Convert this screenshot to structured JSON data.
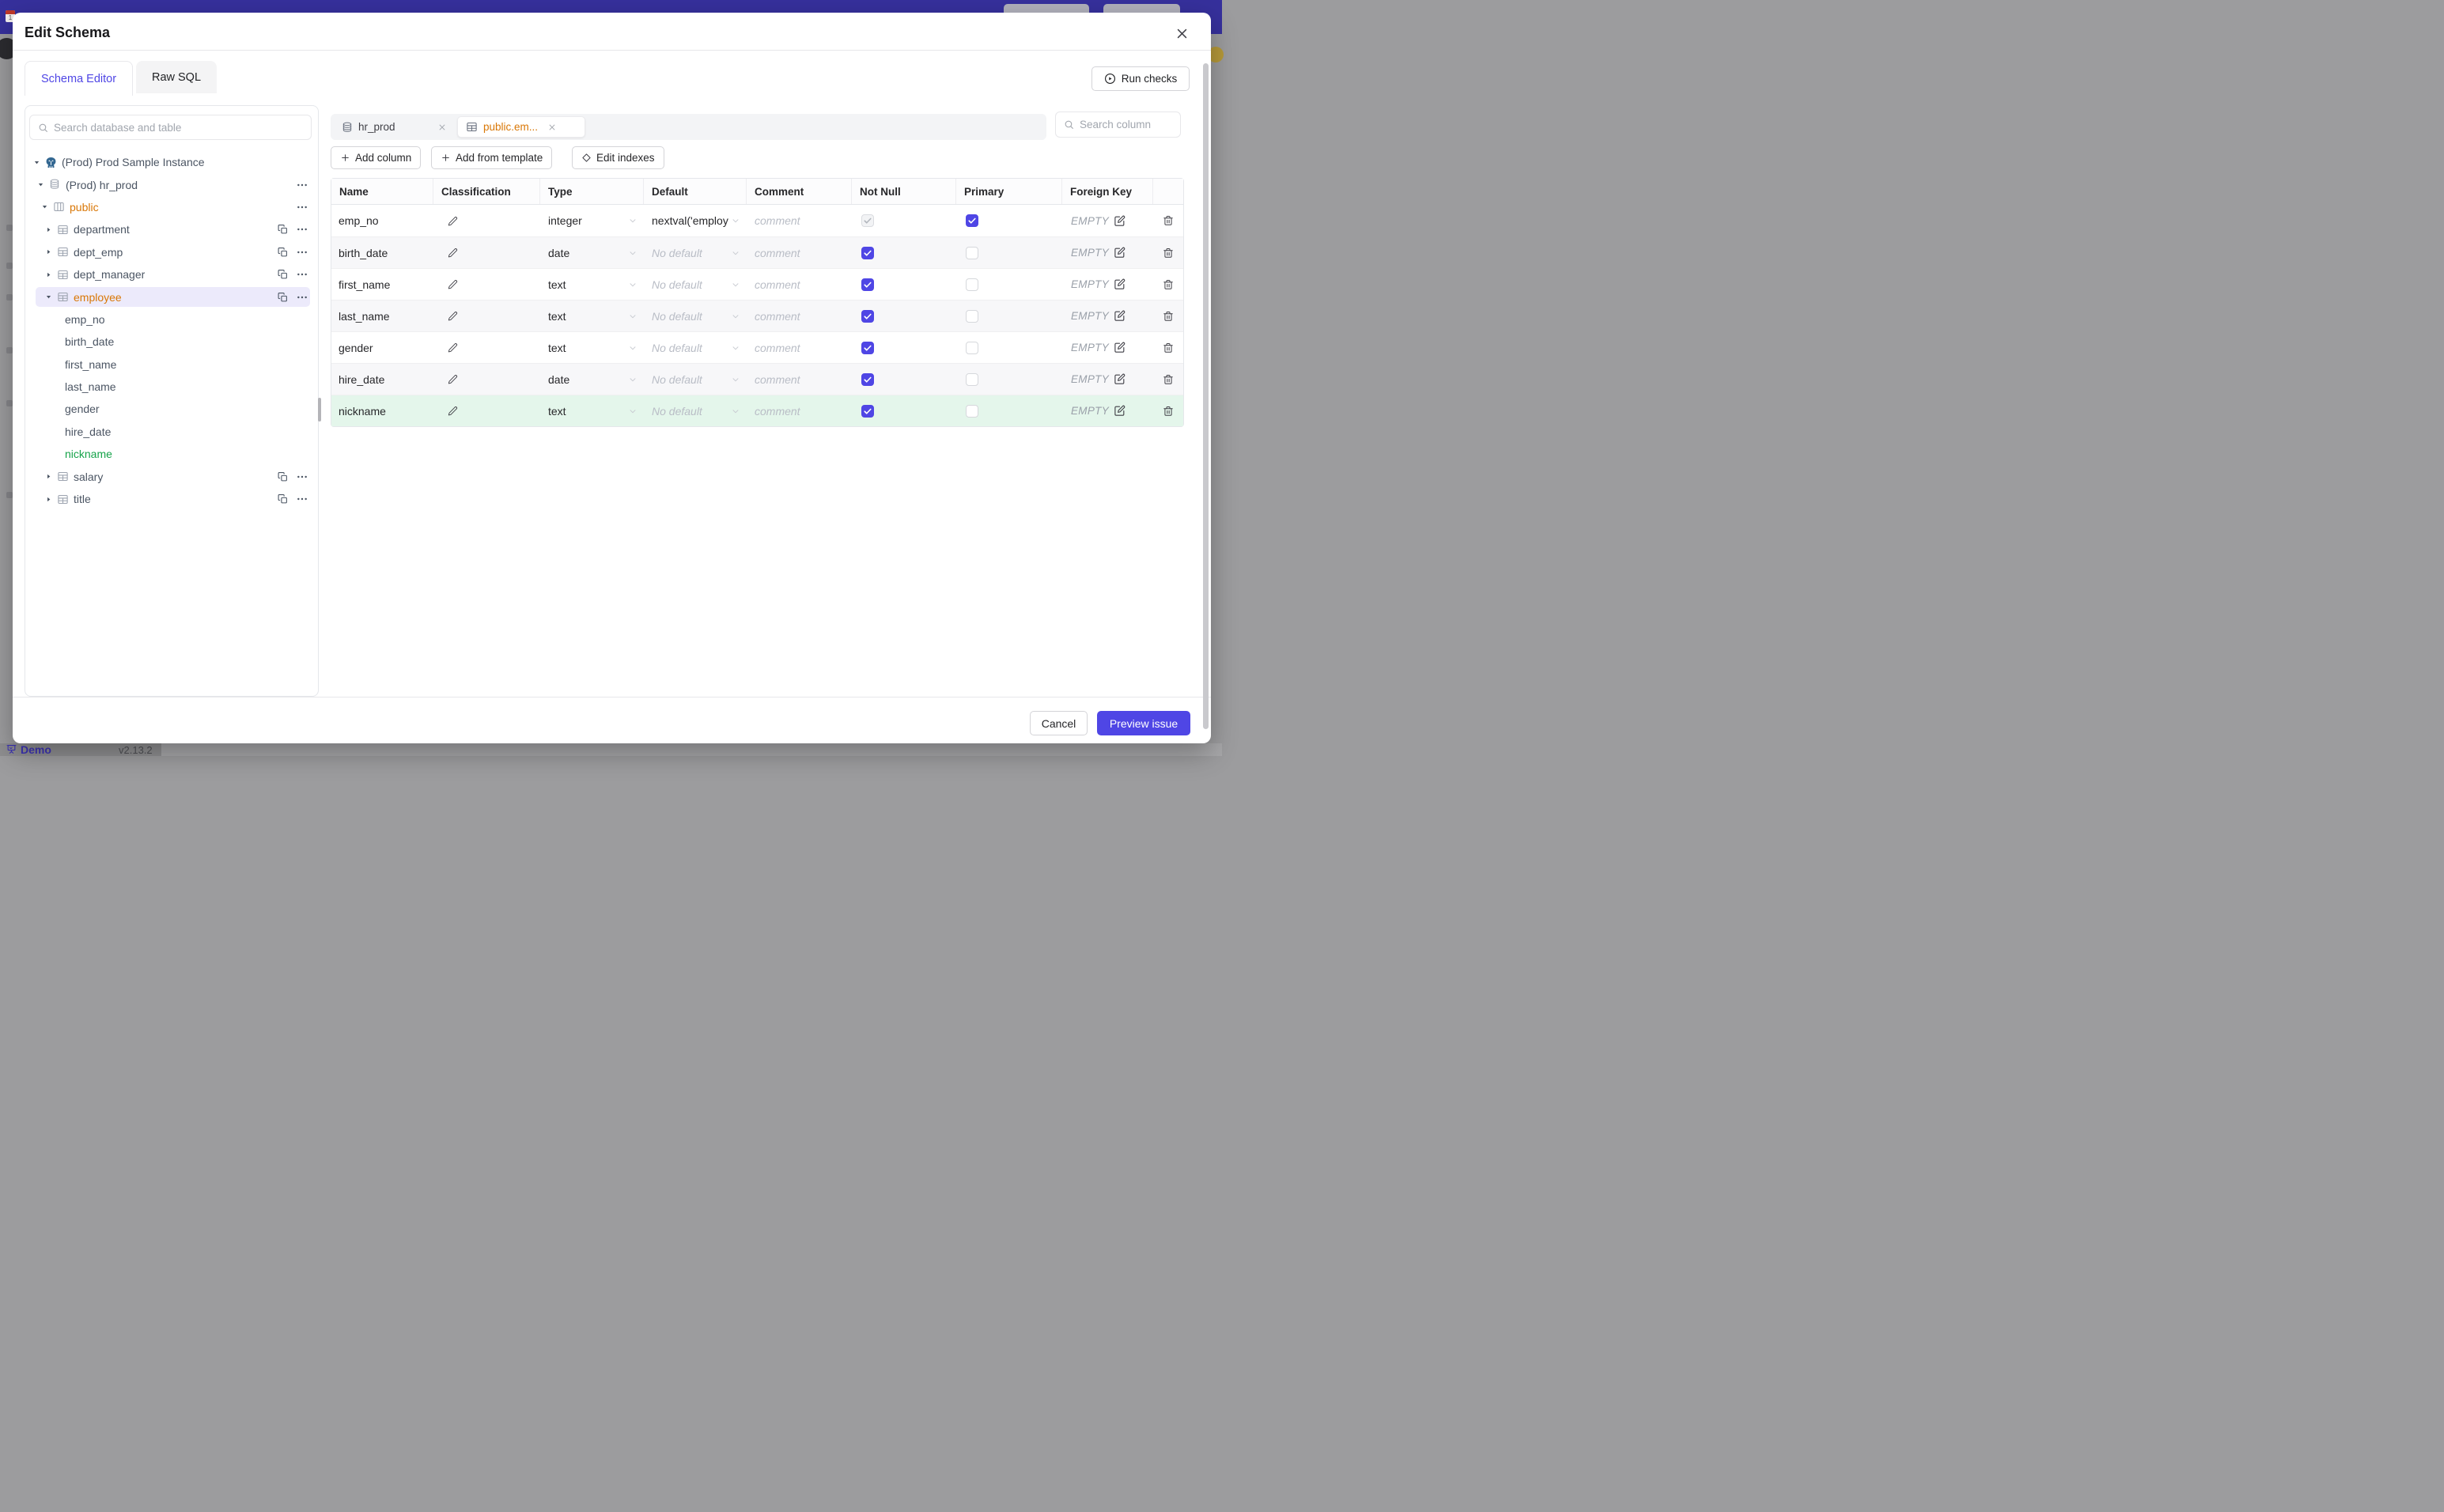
{
  "background": {
    "brand": "Demo",
    "version": "v2.13.2"
  },
  "dialog": {
    "title": "Edit Schema",
    "close_icon": "close-icon",
    "tabs": [
      {
        "label": "Schema Editor",
        "active": true
      },
      {
        "label": "Raw SQL",
        "active": false
      }
    ],
    "run_checks": {
      "label": "Run checks",
      "icon": "play-circle-icon"
    },
    "sidebar": {
      "search_placeholder": "Search database and table",
      "tree": [
        {
          "label": "(Prod) Prod Sample Instance",
          "level": 0,
          "icon": "postgres-instance-icon",
          "caret": "expanded",
          "actions": []
        },
        {
          "label": "(Prod) hr_prod",
          "level": 1,
          "icon": "database-icon",
          "caret": "expanded",
          "actions": [
            "more"
          ]
        },
        {
          "label": "public",
          "level": 2,
          "icon": "schema-icon",
          "caret": "expanded",
          "color": "amber",
          "actions": [
            "more"
          ]
        },
        {
          "label": "department",
          "level": 3,
          "icon": "table-icon",
          "caret": "collapsed",
          "actions": [
            "copy",
            "more"
          ]
        },
        {
          "label": "dept_emp",
          "level": 3,
          "icon": "table-icon",
          "caret": "collapsed",
          "actions": [
            "copy",
            "more"
          ]
        },
        {
          "label": "dept_manager",
          "level": 3,
          "icon": "table-icon",
          "caret": "collapsed",
          "actions": [
            "copy",
            "more"
          ]
        },
        {
          "label": "employee",
          "level": 3,
          "icon": "table-icon",
          "caret": "expanded",
          "color": "amber",
          "selected": true,
          "actions": [
            "copy",
            "more"
          ]
        },
        {
          "label": "emp_no",
          "level": 4,
          "kind": "column"
        },
        {
          "label": "birth_date",
          "level": 4,
          "kind": "column"
        },
        {
          "label": "first_name",
          "level": 4,
          "kind": "column"
        },
        {
          "label": "last_name",
          "level": 4,
          "kind": "column"
        },
        {
          "label": "gender",
          "level": 4,
          "kind": "column"
        },
        {
          "label": "hire_date",
          "level": 4,
          "kind": "column"
        },
        {
          "label": "nickname",
          "level": 4,
          "kind": "column",
          "color": "green"
        },
        {
          "label": "salary",
          "level": 3,
          "icon": "table-icon",
          "caret": "collapsed",
          "actions": [
            "copy",
            "more"
          ]
        },
        {
          "label": "title",
          "level": 3,
          "icon": "table-icon",
          "caret": "collapsed",
          "actions": [
            "copy",
            "more"
          ]
        }
      ]
    },
    "workspace": {
      "open_tabs": [
        {
          "label": "hr_prod",
          "icon": "database-icon",
          "active": false
        },
        {
          "label": "public.em...",
          "icon": "table-icon",
          "active": true
        }
      ],
      "column_search_placeholder": "Search column",
      "toolbar": [
        {
          "label": "Add column",
          "icon": "plus-icon"
        },
        {
          "label": "Add from template",
          "icon": "plus-icon"
        },
        {
          "label": "Edit indexes",
          "icon": "diamond-icon"
        }
      ],
      "grid": {
        "headers": [
          "Name",
          "Classification",
          "Type",
          "Default",
          "Comment",
          "Not Null",
          "Primary",
          "Foreign Key"
        ],
        "comment_placeholder": "comment",
        "no_default_placeholder": "No default",
        "fk_empty_label": "EMPTY",
        "rows": [
          {
            "name": "emp_no",
            "type": "integer",
            "default": "nextval('employ",
            "has_default": true,
            "not_null": true,
            "not_null_disabled": true,
            "primary": true,
            "is_new": false
          },
          {
            "name": "birth_date",
            "type": "date",
            "has_default": false,
            "not_null": true,
            "primary": false,
            "is_new": false
          },
          {
            "name": "first_name",
            "type": "text",
            "has_default": false,
            "not_null": true,
            "primary": false,
            "is_new": false
          },
          {
            "name": "last_name",
            "type": "text",
            "has_default": false,
            "not_null": true,
            "primary": false,
            "is_new": false
          },
          {
            "name": "gender",
            "type": "text",
            "has_default": false,
            "not_null": true,
            "primary": false,
            "is_new": false
          },
          {
            "name": "hire_date",
            "type": "date",
            "has_default": false,
            "not_null": true,
            "primary": false,
            "is_new": false
          },
          {
            "name": "nickname",
            "type": "text",
            "has_default": false,
            "not_null": true,
            "primary": false,
            "is_new": true
          }
        ]
      }
    },
    "footer": {
      "cancel_label": "Cancel",
      "submit_label": "Preview issue"
    }
  }
}
